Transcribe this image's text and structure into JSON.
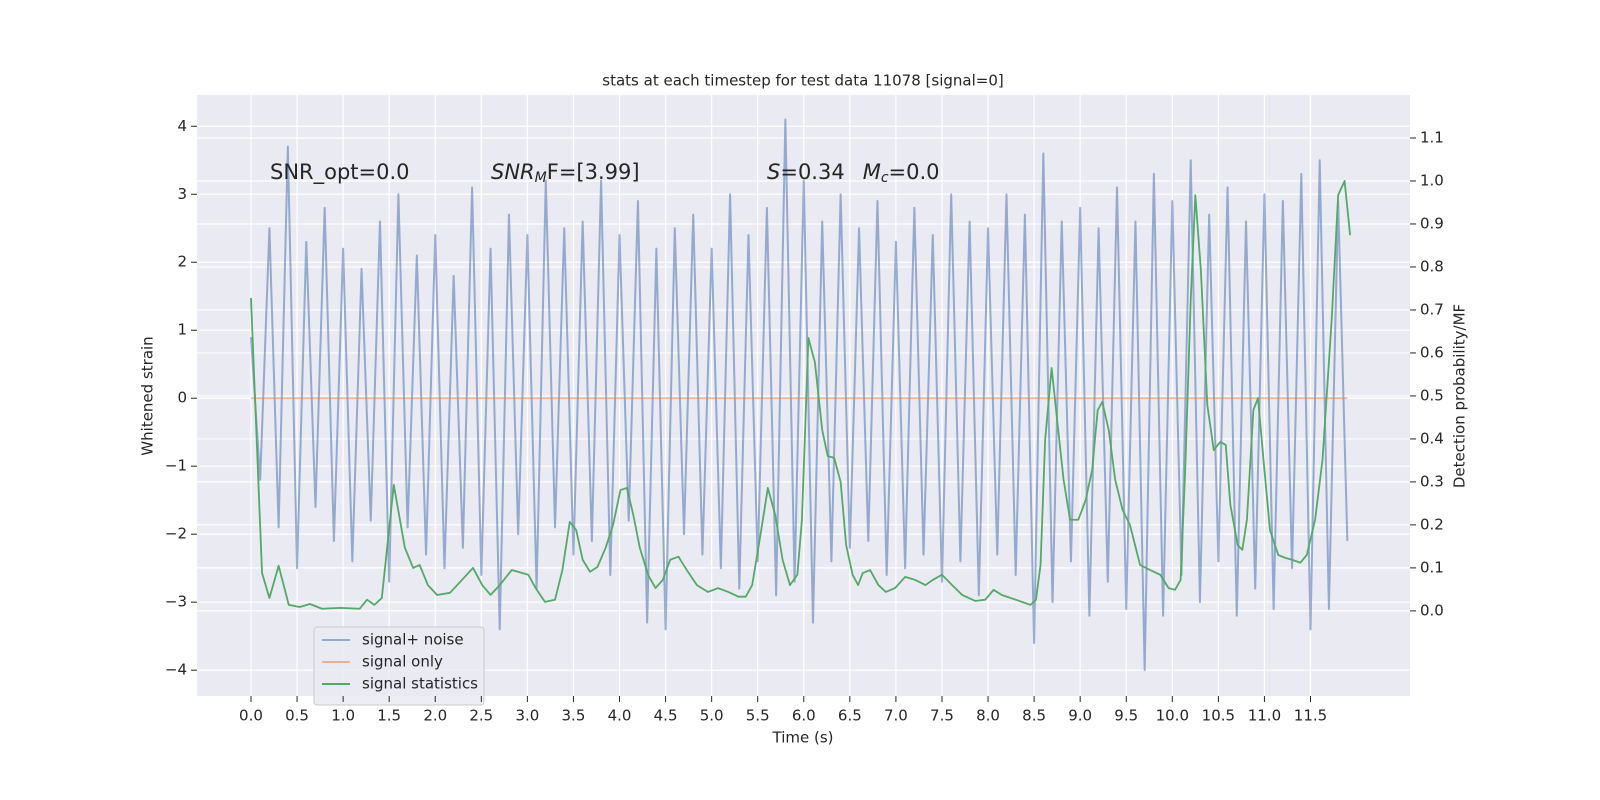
{
  "chart_data": {
    "type": "line",
    "title": "stats at each timestep for test data 11078 [signal=0]",
    "xlabel": "Time (s)",
    "ylabel": "Whitened strain",
    "y2label": "Detection probability/MF",
    "annotations": [
      {
        "parts": [
          "SNR_opt=0.0"
        ]
      },
      {
        "parts": [
          "SNR",
          "M",
          "F=[3.99]"
        ]
      },
      {
        "parts": [
          "S",
          "=0.34",
          "M",
          "c",
          "=0.0"
        ]
      }
    ],
    "xlim": [
      -0.586,
      12.58
    ],
    "ylim": [
      -4.38,
      4.46
    ],
    "y2lim": [
      -0.198,
      1.2
    ],
    "xticks": [
      {
        "value": 0,
        "label": "0.0"
      },
      {
        "value": 0.5,
        "label": "0.5"
      },
      {
        "value": 1,
        "label": "1.0"
      },
      {
        "value": 1.5,
        "label": "1.5"
      },
      {
        "value": 2,
        "label": "2.0"
      },
      {
        "value": 2.5,
        "label": "2.5"
      },
      {
        "value": 3,
        "label": "3.0"
      },
      {
        "value": 3.5,
        "label": "3.5"
      },
      {
        "value": 4,
        "label": "4.0"
      },
      {
        "value": 4.5,
        "label": "4.5"
      },
      {
        "value": 5,
        "label": "5.0"
      },
      {
        "value": 5.5,
        "label": "5.5"
      },
      {
        "value": 6,
        "label": "6.0"
      },
      {
        "value": 6.5,
        "label": "6.5"
      },
      {
        "value": 7,
        "label": "7.0"
      },
      {
        "value": 7.5,
        "label": "7.5"
      },
      {
        "value": 8,
        "label": "8.0"
      },
      {
        "value": 8.5,
        "label": "8.5"
      },
      {
        "value": 9,
        "label": "9.0"
      },
      {
        "value": 9.5,
        "label": "9.5"
      },
      {
        "value": 10,
        "label": "10.0"
      },
      {
        "value": 10.5,
        "label": "10.5"
      },
      {
        "value": 11,
        "label": "11.0"
      },
      {
        "value": 11.5,
        "label": "11.5"
      }
    ],
    "yticks": [
      {
        "value": -4,
        "label": "−4"
      },
      {
        "value": -3,
        "label": "−3"
      },
      {
        "value": -2,
        "label": "−2"
      },
      {
        "value": -1,
        "label": "−1"
      },
      0,
      1,
      2,
      3,
      4
    ],
    "y2ticks": [
      {
        "value": 0,
        "label": "0.0"
      },
      {
        "value": 0.1,
        "label": "0.1"
      },
      {
        "value": 0.2,
        "label": "0.2"
      },
      {
        "value": 0.3,
        "label": "0.3"
      },
      {
        "value": 0.4,
        "label": "0.4"
      },
      {
        "value": 0.5,
        "label": "0.5"
      },
      {
        "value": 0.6,
        "label": "0.6"
      },
      {
        "value": 0.7,
        "label": "0.7"
      },
      {
        "value": 0.8,
        "label": "0.8"
      },
      {
        "value": 0.9,
        "label": "0.9"
      },
      {
        "value": 1,
        "label": "1.0"
      },
      {
        "value": 1.1,
        "label": "1.1"
      }
    ],
    "grid": true,
    "legend": "lower left",
    "series": [
      {
        "name": "signal+ noise",
        "color": "#4c72b0",
        "axis": "y",
        "x": [
          0.0,
          0.1,
          0.2,
          0.3,
          0.4,
          0.5,
          0.6,
          0.7,
          0.8,
          0.9,
          1.0,
          1.1,
          1.2,
          1.3,
          1.4,
          1.5,
          1.6,
          1.7,
          1.8,
          1.9,
          2.0,
          2.1,
          2.2,
          2.3,
          2.4,
          2.5,
          2.6,
          2.7,
          2.8,
          2.9,
          3.0,
          3.1,
          3.2,
          3.3,
          3.4,
          3.5,
          3.6,
          3.7,
          3.8,
          3.9,
          4.0,
          4.1,
          4.2,
          4.3,
          4.4,
          4.5,
          4.6,
          4.7,
          4.8,
          4.9,
          5.0,
          5.1,
          5.2,
          5.3,
          5.4,
          5.5,
          5.6,
          5.7,
          5.8,
          5.9,
          6.0,
          6.1,
          6.2,
          6.3,
          6.4,
          6.5,
          6.6,
          6.7,
          6.8,
          6.9,
          7.0,
          7.1,
          7.2,
          7.3,
          7.4,
          7.5,
          7.6,
          7.7,
          7.8,
          7.9,
          8.0,
          8.1,
          8.2,
          8.3,
          8.4,
          8.5,
          8.6,
          8.7,
          8.8,
          8.9,
          9.0,
          9.1,
          9.2,
          9.3,
          9.4,
          9.5,
          9.6,
          9.7,
          9.8,
          9.9,
          10.0,
          10.1,
          10.2,
          10.3,
          10.4,
          10.5,
          10.6,
          10.7,
          10.8,
          10.9,
          11.0,
          11.1,
          11.2,
          11.3,
          11.4,
          11.5,
          11.6,
          11.7,
          11.8,
          11.9
        ],
        "values": [
          0.9,
          -1.2,
          2.5,
          -1.9,
          3.7,
          -2.5,
          2.3,
          -1.6,
          2.8,
          -2.1,
          2.2,
          -2.4,
          1.9,
          -1.8,
          2.6,
          -2.7,
          3.0,
          -1.9,
          2.1,
          -2.3,
          2.4,
          -2.5,
          1.8,
          -2.2,
          3.1,
          -2.6,
          2.2,
          -3.4,
          2.7,
          -2.0,
          2.4,
          -2.8,
          3.2,
          -1.9,
          2.5,
          -2.3,
          2.6,
          -2.1,
          3.2,
          -2.6,
          2.4,
          -1.8,
          2.9,
          -3.3,
          2.2,
          -3.4,
          2.5,
          -2.0,
          2.7,
          -2.3,
          2.2,
          -2.5,
          3.0,
          -2.8,
          2.4,
          -2.4,
          2.8,
          -2.9,
          4.1,
          -2.7,
          3.2,
          -3.3,
          2.6,
          -2.4,
          3.0,
          -2.2,
          2.5,
          -2.1,
          2.9,
          -2.6,
          2.3,
          -2.5,
          2.8,
          -2.3,
          2.4,
          -2.7,
          3.0,
          -2.4,
          2.6,
          -2.9,
          2.5,
          -2.3,
          3.0,
          -2.6,
          2.7,
          -3.6,
          3.6,
          -3.0,
          2.6,
          -2.4,
          2.8,
          -3.2,
          2.5,
          -2.7,
          3.1,
          -3.1,
          2.6,
          -4.0,
          3.3,
          -3.2,
          2.9,
          -2.6,
          3.5,
          -3.0,
          2.7,
          -2.4,
          3.1,
          -3.2,
          2.6,
          -2.8,
          3.0,
          -3.1,
          2.9,
          -2.5,
          3.3,
          -3.4,
          3.5,
          -3.1,
          2.9,
          -2.1
        ]
      },
      {
        "name": "signal only",
        "color": "#dd8452",
        "axis": "y",
        "x": [
          0.0,
          11.9
        ],
        "values": [
          0,
          0
        ]
      },
      {
        "name": "signal statistics",
        "color": "#55a868",
        "axis": "y2",
        "x": [
          0.0,
          0.12,
          0.2,
          0.3,
          0.41,
          0.53,
          0.64,
          0.77,
          0.97,
          1.18,
          1.26,
          1.34,
          1.42,
          1.55,
          1.67,
          1.76,
          1.83,
          1.92,
          2.02,
          2.16,
          2.29,
          2.41,
          2.51,
          2.6,
          2.7,
          2.83,
          3.01,
          3.09,
          3.19,
          3.3,
          3.38,
          3.46,
          3.53,
          3.6,
          3.68,
          3.76,
          3.85,
          3.93,
          4.01,
          4.08,
          4.15,
          4.22,
          4.31,
          4.39,
          4.47,
          4.55,
          4.64,
          4.73,
          4.84,
          4.96,
          5.07,
          5.18,
          5.29,
          5.37,
          5.44,
          5.53,
          5.61,
          5.69,
          5.77,
          5.85,
          5.93,
          5.98,
          6.05,
          6.12,
          6.2,
          6.26,
          6.33,
          6.4,
          6.46,
          6.53,
          6.59,
          6.64,
          6.72,
          6.81,
          6.89,
          6.99,
          7.1,
          7.21,
          7.32,
          7.4,
          7.5,
          7.61,
          7.72,
          7.86,
          7.97,
          8.06,
          8.15,
          8.3,
          8.46,
          8.52,
          8.57,
          8.62,
          8.69,
          8.75,
          8.82,
          8.89,
          8.98,
          9.06,
          9.13,
          9.19,
          9.24,
          9.31,
          9.38,
          9.46,
          9.54,
          9.65,
          9.76,
          9.87,
          9.96,
          10.03,
          10.09,
          10.14,
          10.2,
          10.25,
          10.31,
          10.38,
          10.45,
          10.52,
          10.58,
          10.63,
          10.71,
          10.76,
          10.81,
          10.88,
          10.93,
          10.99,
          11.06,
          11.15,
          11.23,
          11.3,
          11.39,
          11.46,
          11.55,
          11.63,
          11.73,
          11.8,
          11.87,
          11.93
        ],
        "values": [
          0.728,
          0.088,
          0.03,
          0.105,
          0.014,
          0.009,
          0.016,
          0.005,
          0.007,
          0.005,
          0.026,
          0.014,
          0.03,
          0.293,
          0.147,
          0.1,
          0.107,
          0.06,
          0.037,
          0.042,
          0.072,
          0.1,
          0.06,
          0.037,
          0.06,
          0.095,
          0.084,
          0.053,
          0.021,
          0.026,
          0.095,
          0.207,
          0.188,
          0.119,
          0.091,
          0.102,
          0.147,
          0.2,
          0.281,
          0.286,
          0.223,
          0.147,
          0.084,
          0.053,
          0.072,
          0.119,
          0.126,
          0.095,
          0.06,
          0.044,
          0.053,
          0.044,
          0.033,
          0.033,
          0.06,
          0.177,
          0.286,
          0.223,
          0.119,
          0.06,
          0.084,
          0.212,
          0.635,
          0.579,
          0.421,
          0.36,
          0.356,
          0.3,
          0.153,
          0.084,
          0.06,
          0.088,
          0.095,
          0.06,
          0.044,
          0.053,
          0.079,
          0.072,
          0.06,
          0.072,
          0.084,
          0.06,
          0.037,
          0.023,
          0.026,
          0.049,
          0.037,
          0.026,
          0.014,
          0.026,
          0.107,
          0.398,
          0.565,
          0.444,
          0.305,
          0.212,
          0.212,
          0.258,
          0.328,
          0.467,
          0.486,
          0.421,
          0.305,
          0.235,
          0.2,
          0.107,
          0.095,
          0.084,
          0.053,
          0.049,
          0.072,
          0.328,
          0.723,
          0.967,
          0.793,
          0.479,
          0.374,
          0.393,
          0.386,
          0.247,
          0.153,
          0.142,
          0.212,
          0.467,
          0.495,
          0.351,
          0.188,
          0.13,
          0.123,
          0.119,
          0.112,
          0.13,
          0.212,
          0.351,
          0.677,
          0.967,
          1.0,
          0.874
        ]
      }
    ]
  }
}
